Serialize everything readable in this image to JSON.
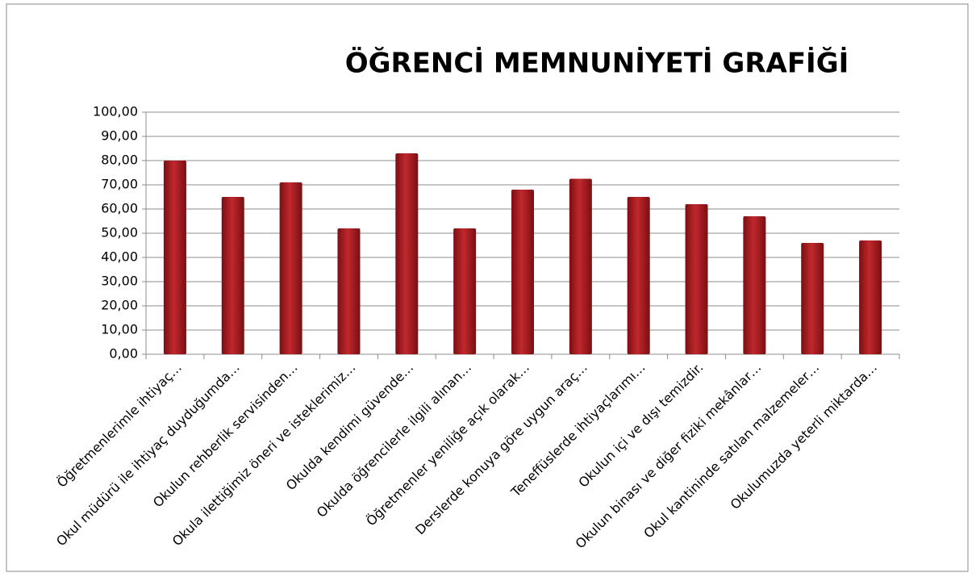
{
  "chart_data": {
    "type": "bar",
    "title": "ÖĞRENCİ MEMNUNİYETİ GRAFİĞİ",
    "categories": [
      "Öğretmenlerimle ihtiyaç…",
      "Okul müdürü ile ihtiyaç duyduğumda…",
      "Okulun rehberlik servisinden…",
      "Okula ilettiğimiz öneri ve isteklerimiz…",
      "Okulda kendimi güvende…",
      "Okulda öğrencilerle ilgili alınan…",
      "Öğretmenler yeniliğe açık olarak…",
      "Derslerde konuya göre uygun araç…",
      "Teneffüslerde ihtiyaçlarımı…",
      "Okulun içi ve dışı temizdir.",
      "Okulun binası ve diğer fiziki mekânlar…",
      "Okul kantininde satılan malzemeler…",
      "Okulumuzda yeterli miktarda…"
    ],
    "values": [
      80,
      65,
      71,
      52,
      83,
      52,
      68,
      72.5,
      65,
      62,
      57,
      46,
      47
    ],
    "color": "#c0282d",
    "ylim": [
      0,
      100
    ],
    "yticks": [
      {
        "value": 0,
        "label": "0,00"
      },
      {
        "value": 10,
        "label": "10,00"
      },
      {
        "value": 20,
        "label": "20,00"
      },
      {
        "value": 30,
        "label": "30,00"
      },
      {
        "value": 40,
        "label": "40,00"
      },
      {
        "value": 50,
        "label": "50,00"
      },
      {
        "value": 60,
        "label": "60,00"
      },
      {
        "value": 70,
        "label": "70,00"
      },
      {
        "value": 80,
        "label": "80,00"
      },
      {
        "value": 90,
        "label": "90,00"
      },
      {
        "value": 100,
        "label": "100,00"
      }
    ],
    "grid": true
  }
}
